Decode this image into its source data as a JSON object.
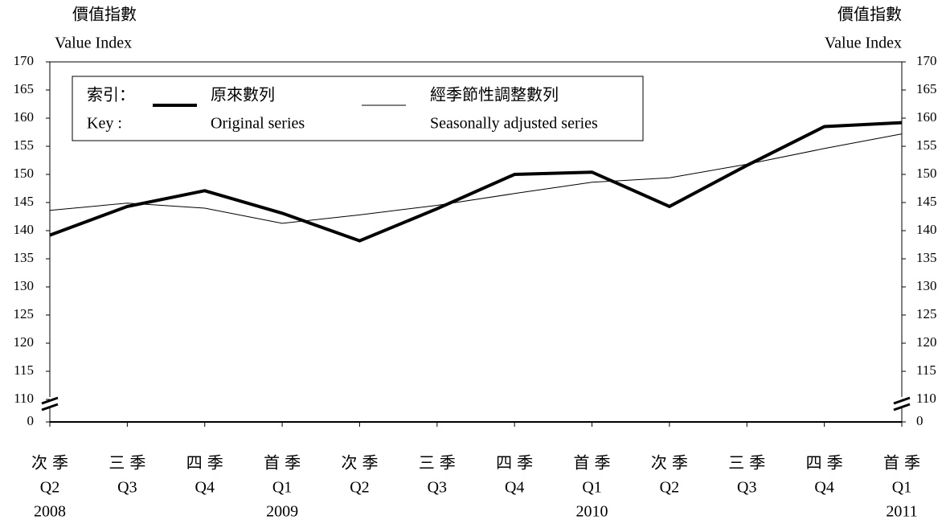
{
  "chart_data": {
    "type": "line",
    "y_axis_label_zh": "價值指數",
    "y_axis_label": "Value Index",
    "categories_zh": [
      "次季",
      "三季",
      "四季",
      "首季",
      "次季",
      "三季",
      "四季",
      "首季",
      "次季",
      "三季",
      "四季",
      "首季"
    ],
    "categories": [
      "Q2",
      "Q3",
      "Q4",
      "Q1",
      "Q2",
      "Q3",
      "Q4",
      "Q1",
      "Q2",
      "Q3",
      "Q4",
      "Q1"
    ],
    "years": [
      "2008",
      null,
      null,
      "2009",
      null,
      null,
      null,
      "2010",
      null,
      null,
      null,
      "2011"
    ],
    "series": [
      {
        "name_zh": "原來數列",
        "name": "Original series",
        "color": "#000000",
        "width": 4,
        "values": [
          139.2,
          144.3,
          147.1,
          143.1,
          138.2,
          143.9,
          150.0,
          150.4,
          144.3,
          151.6,
          158.5,
          159.2
        ]
      },
      {
        "name_zh": "經季節性調整數列",
        "name": "Seasonally adjusted series",
        "color": "#000000",
        "width": 1,
        "values": [
          143.6,
          144.9,
          144.0,
          141.3,
          142.8,
          144.5,
          146.6,
          148.6,
          149.4,
          151.8,
          154.6,
          157.2
        ]
      }
    ],
    "legend_title_zh": "索引：",
    "legend_title": "Key :",
    "ylim": [
      0,
      170
    ],
    "axis_break": [
      0,
      110
    ],
    "yticks": [
      0,
      110,
      115,
      120,
      125,
      130,
      135,
      140,
      145,
      150,
      155,
      160,
      165,
      170
    ]
  }
}
